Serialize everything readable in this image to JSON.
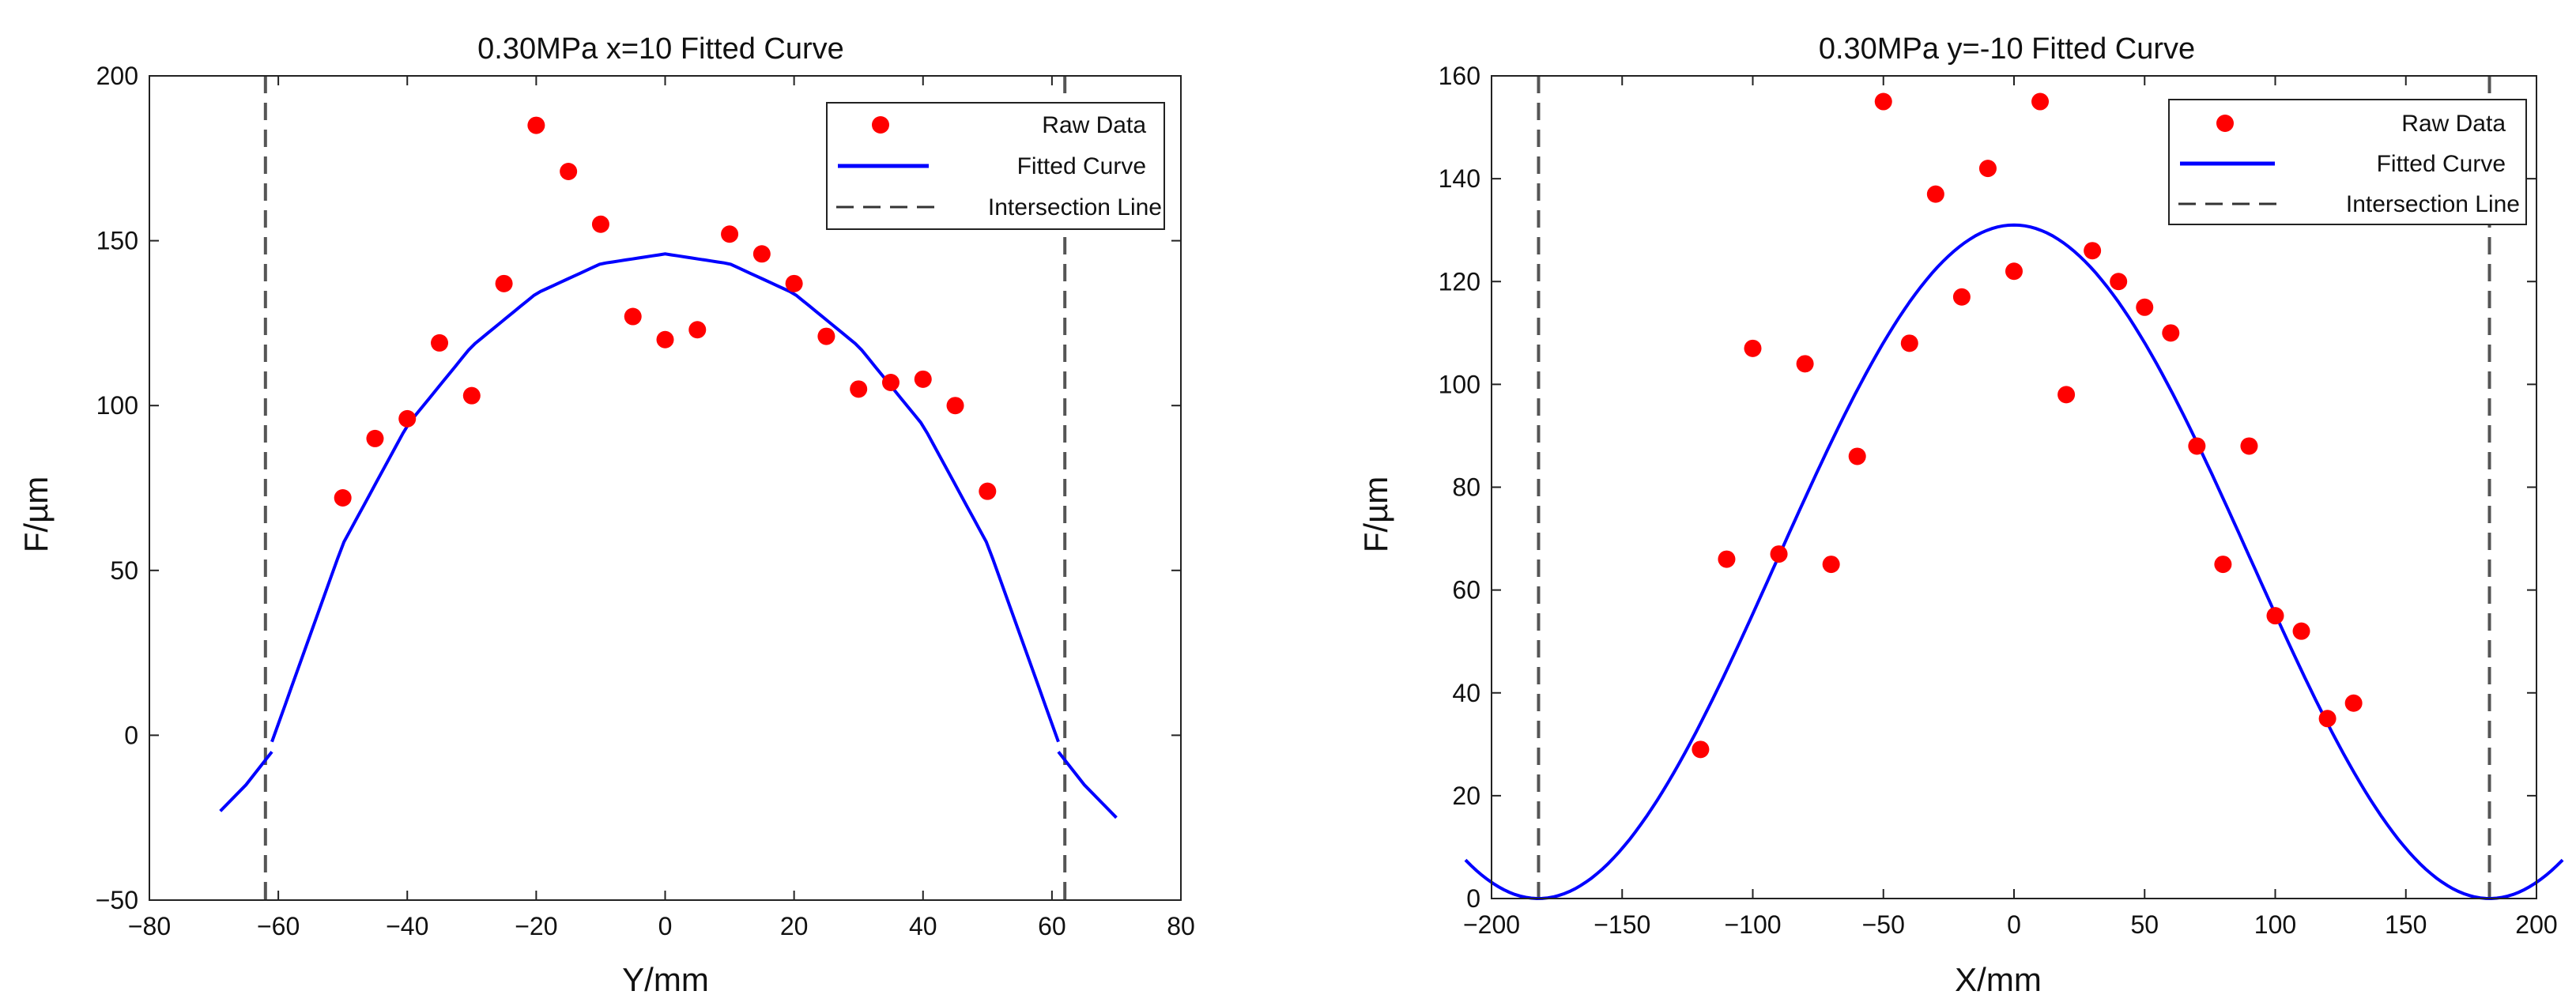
{
  "chart_data": [
    {
      "type": "scatter",
      "title": "0.30MPa x=10 Fitted Curve",
      "xlabel": "Y/mm",
      "ylabel": "F/µm",
      "xlim": [
        -80,
        80
      ],
      "ylim": [
        -50,
        200
      ],
      "xticks": [
        -80,
        -60,
        -40,
        -20,
        0,
        20,
        40,
        60,
        80
      ],
      "yticks": [
        -50,
        0,
        50,
        100,
        150,
        200
      ],
      "xtick_labels": [
        "−80",
        "−60",
        "−40",
        "−20",
        "0",
        "20",
        "40",
        "60",
        "80"
      ],
      "ytick_labels": [
        "−50",
        "0",
        "50",
        "100",
        "150",
        "200"
      ],
      "legend": [
        "Raw Data",
        "Fitted Curve",
        "Intersection Line"
      ],
      "legend_position": "top-right",
      "series": [
        {
          "name": "Raw Data",
          "color": "#ff0000",
          "x": [
            -50,
            -45,
            -40,
            -35,
            -30,
            -25,
            -20,
            -15,
            -10,
            -5,
            0,
            5,
            10,
            15,
            20,
            25,
            30,
            35,
            40,
            45,
            50
          ],
          "y": [
            72,
            90,
            96,
            119,
            103,
            137,
            185,
            171,
            155,
            127,
            120,
            123,
            152,
            146,
            137,
            121,
            105,
            107,
            108,
            100,
            74
          ]
        },
        {
          "name": "Fitted Curve",
          "color": "#0000ff",
          "inner_x": [
            -61,
            -50,
            -40,
            -30,
            -20,
            -10,
            0,
            10,
            20,
            30,
            40,
            50,
            61
          ],
          "inner_y": [
            -2,
            58,
            94,
            118,
            134,
            143,
            146,
            143,
            134,
            118,
            94,
            58,
            -2
          ],
          "left_tail_x": [
            -69,
            -65,
            -61
          ],
          "left_tail_y": [
            -23,
            -15,
            -5
          ],
          "right_tail_x": [
            61,
            65,
            70
          ],
          "right_tail_y": [
            -5,
            -15,
            -25
          ]
        },
        {
          "name": "Intersection Line",
          "color": "#555555",
          "x": [
            -62,
            62
          ]
        }
      ]
    },
    {
      "type": "scatter",
      "title": "0.30MPa y=-10 Fitted Curve",
      "xlabel": "X/mm",
      "ylabel": "F/µm",
      "xlim": [
        -200,
        200
      ],
      "ylim": [
        0,
        160
      ],
      "xticks": [
        -200,
        -150,
        -100,
        -50,
        0,
        50,
        100,
        150,
        200
      ],
      "yticks": [
        0,
        20,
        40,
        60,
        80,
        100,
        120,
        140,
        160
      ],
      "xtick_labels": [
        "−200",
        "−150",
        "−100",
        "−50",
        "0",
        "50",
        "100",
        "150",
        "200"
      ],
      "ytick_labels": [
        "0",
        "20",
        "40",
        "60",
        "80",
        "100",
        "120",
        "140",
        "160"
      ],
      "legend": [
        "Raw Data",
        "Fitted Curve",
        "Intersection Line"
      ],
      "legend_position": "top-right",
      "series": [
        {
          "name": "Raw Data",
          "color": "#ff0000",
          "x": [
            -120,
            -110,
            -100,
            -90,
            -80,
            -70,
            -60,
            -50,
            -40,
            -30,
            -20,
            -10,
            0,
            10,
            20,
            30,
            40,
            50,
            60,
            70,
            80,
            90,
            100,
            110,
            120,
            130
          ],
          "y": [
            29,
            66,
            107,
            67,
            104,
            65,
            86,
            155,
            108,
            137,
            117,
            142,
            122,
            155,
            98,
            126,
            120,
            115,
            110,
            88,
            65,
            88,
            55,
            52,
            35,
            38
          ]
        },
        {
          "name": "Fitted Curve",
          "color": "#0000ff",
          "x_start": -210,
          "x_end": 210,
          "peak": 131,
          "zero_at": 182
        },
        {
          "name": "Intersection Line",
          "color": "#555555",
          "x": [
            -182,
            182
          ]
        }
      ]
    }
  ]
}
